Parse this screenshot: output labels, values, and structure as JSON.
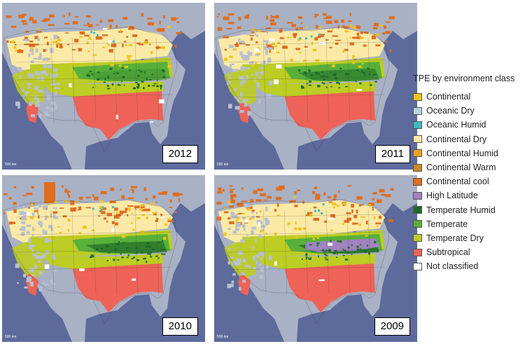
{
  "panels": [
    {
      "id": "2012",
      "year": "2012",
      "scale": "500 km"
    },
    {
      "id": "2011",
      "year": "2011",
      "scale": "500 km"
    },
    {
      "id": "2010",
      "year": "2010",
      "scale": "500 km"
    },
    {
      "id": "2009",
      "year": "2009",
      "scale": "500 km"
    }
  ],
  "legend": {
    "title": "TPE by environment class",
    "items": [
      {
        "label": "Continental",
        "color": "#f2c419"
      },
      {
        "label": "Oceanic Dry",
        "color": "#b8d4e0"
      },
      {
        "label": "Oceanic Humid",
        "color": "#3fb8c4"
      },
      {
        "label": "Continental Dry",
        "color": "#faeaa6"
      },
      {
        "label": "Continental Humid",
        "color": "#e9a21c"
      },
      {
        "label": "Continental Warm",
        "color": "#c88a26"
      },
      {
        "label": "Continental cool",
        "color": "#e06d1e"
      },
      {
        "label": "High Latitude",
        "color": "#a083c0"
      },
      {
        "label": "Temperate Humid",
        "color": "#1f6b2a"
      },
      {
        "label": "Temperate",
        "color": "#58b03a"
      },
      {
        "label": "Temperate Dry",
        "color": "#bccd23"
      },
      {
        "label": "Subtropical",
        "color": "#ef6257"
      },
      {
        "label": "Not classified",
        "color": "#ffffff"
      }
    ]
  }
}
